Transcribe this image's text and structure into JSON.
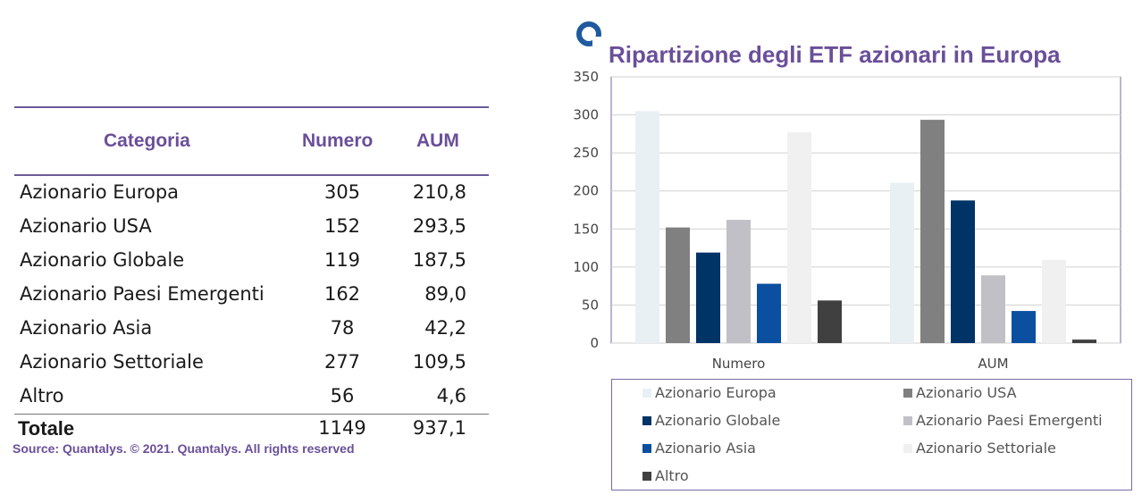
{
  "table": {
    "headers": {
      "category": "Categoria",
      "number": "Numero",
      "aum": "AUM"
    },
    "rows": [
      {
        "category": "Azionario Europa",
        "number": "305",
        "aum": "210,8"
      },
      {
        "category": "Azionario USA",
        "number": "152",
        "aum": "293,5"
      },
      {
        "category": "Azionario Globale",
        "number": "119",
        "aum": "187,5"
      },
      {
        "category": "Azionario Paesi Emergenti",
        "number": "162",
        "aum": "89,0"
      },
      {
        "category": "Azionario Asia",
        "number": "78",
        "aum": "42,2"
      },
      {
        "category": "Azionario Settoriale",
        "number": "277",
        "aum": "109,5"
      },
      {
        "category": "Altro",
        "number": "56",
        "aum": "4,6"
      }
    ],
    "total": {
      "category": "Totale",
      "number": "1149",
      "aum": "937,1"
    }
  },
  "source": "Source: Quantalys. © 2021. Quantalys. All rights reserved",
  "colors": {
    "accent": "#6a4f99",
    "logo": "#1f5a9e"
  },
  "logo_icon": "quantalys-ring-logo",
  "chart_data": {
    "type": "bar",
    "title": "Ripartizione degli ETF azionari in Europa",
    "categories": [
      "Numero",
      "AUM"
    ],
    "ylim": [
      0,
      350
    ],
    "yticks": [
      0,
      50,
      100,
      150,
      200,
      250,
      300,
      350
    ],
    "grid": true,
    "legend_position": "bottom",
    "series": [
      {
        "name": "Azionario Europa",
        "values": [
          305,
          210.8
        ],
        "color": "#e8f0f4"
      },
      {
        "name": "Azionario USA",
        "values": [
          152,
          293.5
        ],
        "color": "#808080"
      },
      {
        "name": "Azionario Globale",
        "values": [
          119,
          187.5
        ],
        "color": "#003366"
      },
      {
        "name": "Azionario Paesi Emergenti",
        "values": [
          162,
          89.0
        ],
        "color": "#c0c0c6"
      },
      {
        "name": "Azionario Asia",
        "values": [
          78,
          42.2
        ],
        "color": "#0b4fa0"
      },
      {
        "name": "Azionario Settoriale",
        "values": [
          277,
          109.5
        ],
        "color": "#f0f0f0"
      },
      {
        "name": "Altro",
        "values": [
          56,
          4.6
        ],
        "color": "#404040"
      }
    ]
  }
}
